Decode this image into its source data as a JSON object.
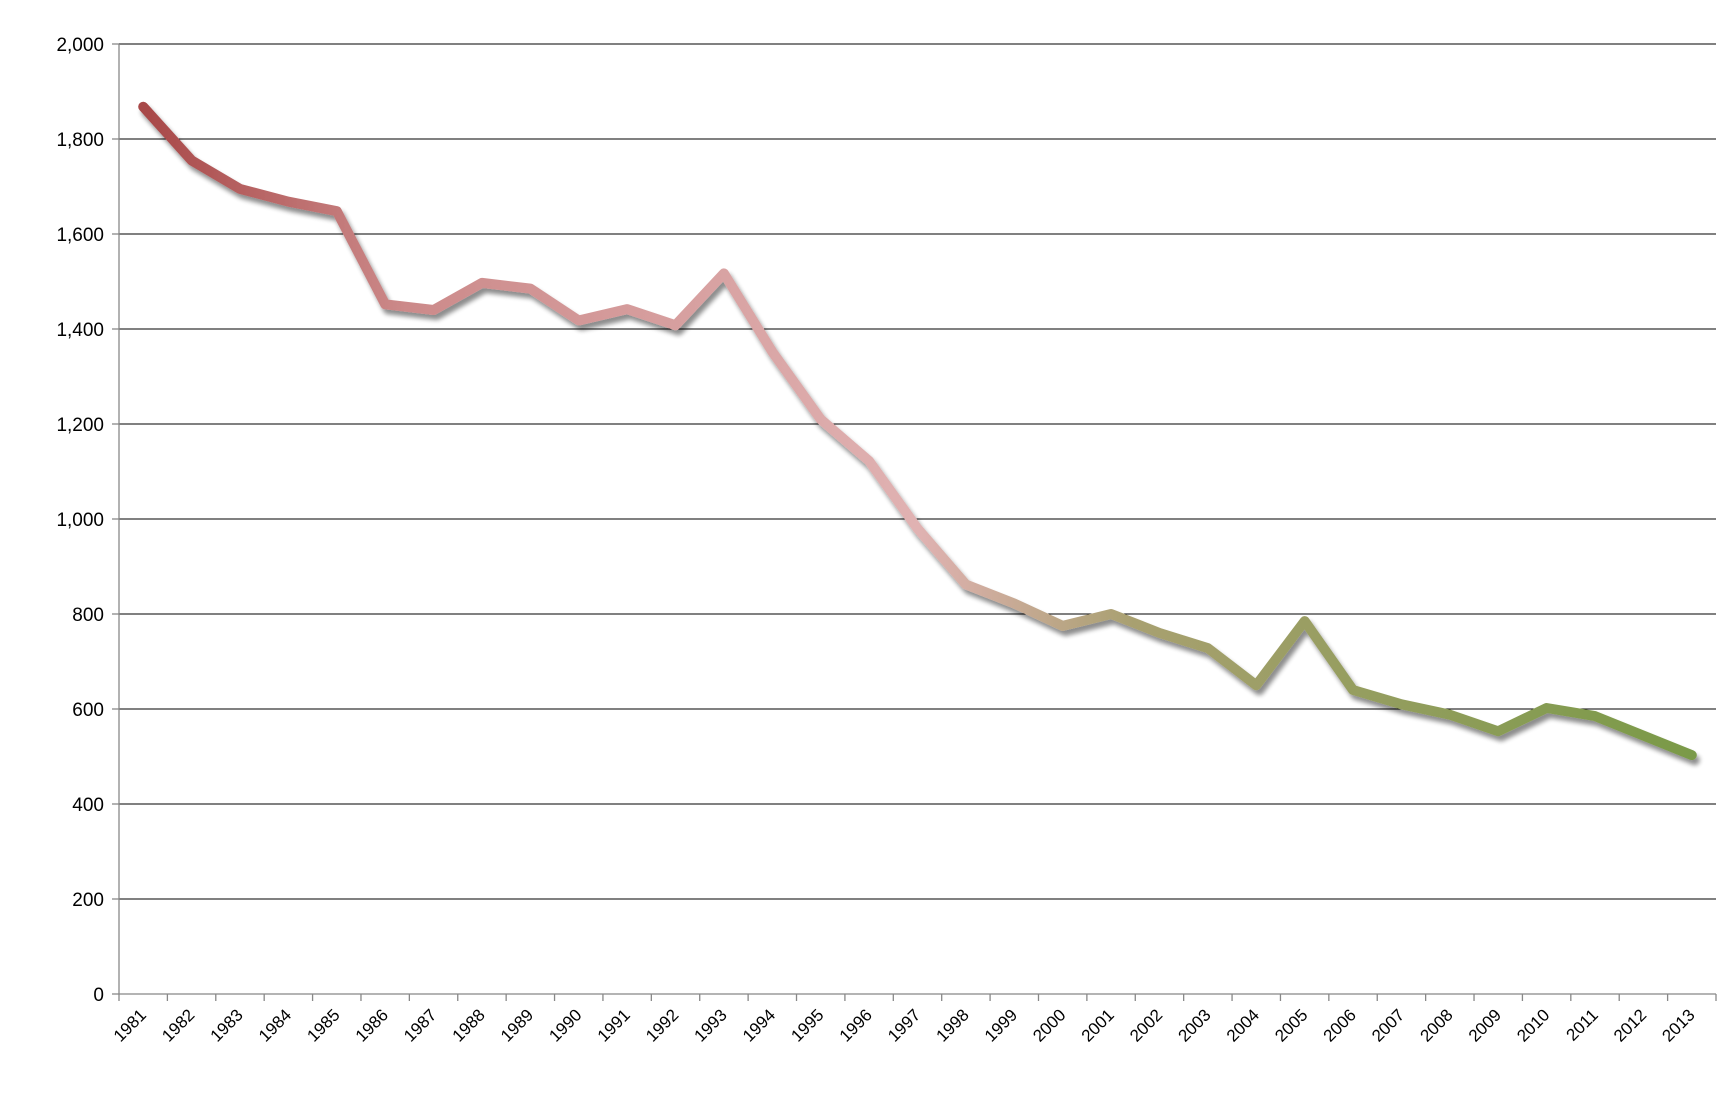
{
  "chart_data": {
    "type": "line",
    "title": "",
    "xlabel": "",
    "ylabel": "",
    "ylim": [
      0,
      2000
    ],
    "yticks": [
      0,
      200,
      400,
      600,
      800,
      1000,
      1200,
      1400,
      1600,
      1800,
      2000
    ],
    "ytick_labels": [
      "0",
      "200",
      "400",
      "600",
      "800",
      "1,000",
      "1,200",
      "1,400",
      "1,600",
      "1,800",
      "2,000"
    ],
    "grid": true,
    "legend": "none",
    "colors": {
      "start": "#a84848",
      "mid_pink": "#cc8a8a",
      "light_pink": "#e0b2b2",
      "olive": "#a8a070",
      "green": "#7a9a48"
    },
    "categories": [
      "1981",
      "1982",
      "1983",
      "1984",
      "1985",
      "1986",
      "1987",
      "1988",
      "1989",
      "1990",
      "1991",
      "1992",
      "1993",
      "1994",
      "1995",
      "1996",
      "1997",
      "1998",
      "1999",
      "2000",
      "2001",
      "2002",
      "2003",
      "2004",
      "2005",
      "2006",
      "2007",
      "2008",
      "2009",
      "2010",
      "2011",
      "2012",
      "2013"
    ],
    "series": [
      {
        "values": [
          1868,
          1755,
          1695,
          1668,
          1648,
          1452,
          1440,
          1497,
          1485,
          1418,
          1442,
          1408,
          1517,
          1352,
          1210,
          1122,
          980,
          862,
          822,
          775,
          800,
          760,
          728,
          650,
          785,
          640,
          610,
          588,
          553,
          602,
          585,
          544,
          503
        ]
      }
    ]
  }
}
